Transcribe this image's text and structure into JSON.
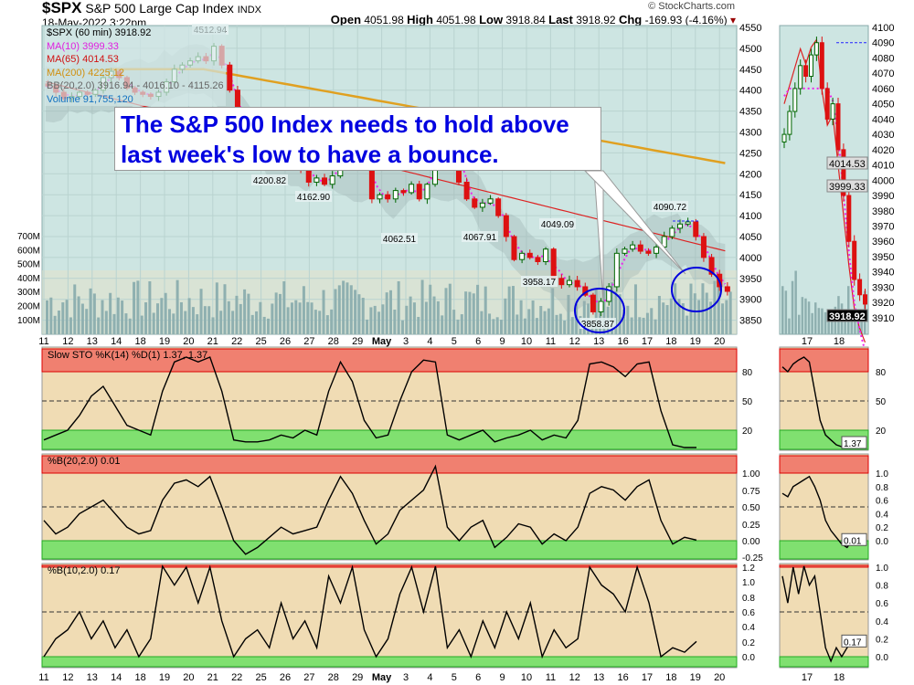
{
  "header": {
    "symbol": "$SPX",
    "name": "S&P 500 Large Cap Index",
    "exchange": "INDX",
    "datetime": "18-May-2022 3:22pm",
    "open_label": "Open",
    "open": "4051.98",
    "high_label": "High",
    "high": "4051.98",
    "low_label": "Low",
    "low": "3918.84",
    "last_label": "Last",
    "last": "3918.92",
    "chg_label": "Chg",
    "chg": "-169.93 (-4.16%)",
    "brand": "© StockCharts.com"
  },
  "legend": {
    "price": "$SPX (60 min) 3918.92",
    "ma10": "MA(10) 3999.33",
    "ma65": "MA(65) 4014.53",
    "ma200": "MA(200) 4225.12",
    "bb": "BB(20,2.0) 3916.94 - 4016.10 - 4115.26",
    "volume": "Volume 91,755,120"
  },
  "annotation": {
    "line1": "The S&P 500 Index needs to hold above",
    "line2": "last week's low to have a bounce."
  },
  "colors": {
    "price_bg": "#cde5e2",
    "osc_bg": "#f0dcb4",
    "overbought": "#f08070",
    "oversold": "#80e070",
    "up": "#006600",
    "down": "#dd1111",
    "ma10": "#ee22ee",
    "ma65": "#dd2222",
    "ma200": "#e0a020",
    "callout_text": "#0000e0",
    "circle": "#0000dd"
  },
  "chart_data": [
    {
      "type": "candlestick",
      "ylim": [
        3830,
        4550
      ],
      "yticks": [
        4550,
        4500,
        4450,
        4400,
        4350,
        4300,
        4250,
        4200,
        4150,
        4100,
        4050,
        4000,
        3950,
        3900,
        3850
      ],
      "xticks": [
        "11",
        "12",
        "13",
        "14",
        "18",
        "19",
        "20",
        "21",
        "22",
        "25",
        "26",
        "27",
        "28",
        "29",
        "May",
        "3",
        "4",
        "5",
        "6",
        "9",
        "10",
        "11",
        "12",
        "13",
        "16",
        "17",
        "18",
        "19",
        "20"
      ],
      "close": [
        4410,
        4395,
        4380,
        4385,
        4395,
        4390,
        4400,
        4430,
        4445,
        4430,
        4405,
        4395,
        4390,
        4385,
        4395,
        4420,
        4450,
        4460,
        4470,
        4480,
        4470,
        4505,
        4460,
        4400,
        4330,
        4290,
        4270,
        4240,
        4215,
        4230,
        4280,
        4270,
        4210,
        4180,
        4190,
        4175,
        4195,
        4250,
        4285,
        4270,
        4215,
        4140,
        4150,
        4140,
        4160,
        4155,
        4175,
        4140,
        4175,
        4270,
        4300,
        4290,
        4180,
        4140,
        4120,
        4130,
        4140,
        4100,
        4050,
        3995,
        4010,
        4000,
        3990,
        4020,
        3950,
        3935,
        3945,
        3930,
        3910,
        3870,
        3895,
        3930,
        4010,
        4020,
        4030,
        4015,
        4010,
        4025,
        4050,
        4070,
        4080,
        4085,
        4050,
        4000,
        3960,
        3930,
        3919
      ],
      "ma200_end": 4225.12,
      "ma65_end": 4014.53,
      "ma10_end": 3999.33,
      "volume_ylim_label": [
        "700M",
        "600M",
        "500M",
        "400M",
        "300M",
        "200M",
        "100M"
      ],
      "price_labels": [
        {
          "text": "4512.94",
          "price": 4512.94,
          "day": "21"
        },
        {
          "text": "4200.82",
          "day": "25"
        },
        {
          "text": "4162.90",
          "day": "27"
        },
        {
          "text": "4062.51",
          "day": "3"
        },
        {
          "text": "4067.91",
          "day": "9"
        },
        {
          "text": "4049.09",
          "day": "11"
        },
        {
          "text": "3958.17",
          "day": "11"
        },
        {
          "text": "3858.87",
          "day": "12"
        },
        {
          "text": "4090.72",
          "day": "17"
        }
      ]
    },
    {
      "type": "candlestick",
      "ylim": [
        3907,
        4100
      ],
      "yticks": [
        4100,
        4090,
        4080,
        4070,
        4060,
        4050,
        4040,
        4030,
        4020,
        4010,
        4000,
        3990,
        3980,
        3970,
        3960,
        3950,
        3940,
        3930,
        3920,
        3910
      ],
      "xticks": [
        "17",
        "18"
      ],
      "close": [
        4030,
        4045,
        4060,
        4075,
        4068,
        4082,
        4090,
        4060,
        4040,
        4050,
        4020,
        3990,
        3960,
        3935,
        3925,
        3918.92
      ],
      "tags": [
        "4014.53",
        "3999.33",
        "3918.92"
      ]
    },
    {
      "type": "line",
      "title": "Slow STO %K(14) %D(1) 1.37, 1.37",
      "yticks": [
        "80",
        "50",
        "20"
      ],
      "ylim": [
        0,
        100
      ],
      "bands": [
        20,
        80
      ],
      "values": [
        10,
        15,
        20,
        35,
        55,
        65,
        45,
        25,
        20,
        15,
        60,
        90,
        95,
        90,
        95,
        60,
        10,
        8,
        8,
        10,
        15,
        12,
        20,
        15,
        60,
        90,
        70,
        30,
        12,
        15,
        50,
        80,
        92,
        90,
        15,
        10,
        15,
        20,
        8,
        12,
        15,
        20,
        10,
        15,
        12,
        30,
        88,
        90,
        85,
        75,
        88,
        90,
        40,
        5,
        2,
        1.37
      ],
      "mini": [
        85,
        80,
        88,
        92,
        95,
        90,
        60,
        30,
        15,
        10,
        5,
        3,
        2,
        1.37
      ],
      "mini_ticks": [
        "80",
        "50",
        "20"
      ]
    },
    {
      "type": "line",
      "title": "%B(20,2.0) 0.01",
      "yticks": [
        "1.00",
        "0.75",
        "0.50",
        "0.25",
        "0.00",
        "-0.25"
      ],
      "ylim": [
        -0.3,
        1.2
      ],
      "bands": [
        0,
        1
      ],
      "values": [
        0.3,
        0.1,
        0.2,
        0.4,
        0.5,
        0.6,
        0.4,
        0.2,
        0.1,
        0.15,
        0.6,
        0.85,
        0.9,
        0.8,
        0.95,
        0.5,
        0.0,
        -0.2,
        -0.1,
        0.05,
        0.2,
        0.1,
        0.15,
        0.2,
        0.6,
        0.95,
        0.7,
        0.3,
        -0.05,
        0.1,
        0.45,
        0.6,
        0.75,
        1.1,
        0.2,
        0.0,
        0.2,
        0.3,
        -0.1,
        0.05,
        0.25,
        0.2,
        -0.05,
        0.1,
        0.0,
        0.2,
        0.7,
        0.8,
        0.75,
        0.6,
        0.8,
        0.9,
        0.3,
        -0.05,
        0.05,
        0.01
      ],
      "mini": [
        0.7,
        0.65,
        0.8,
        0.85,
        0.9,
        0.95,
        0.8,
        0.6,
        0.3,
        0.15,
        0.05,
        -0.05,
        -0.1,
        0.01
      ],
      "mini_ticks": [
        "1.0",
        "0.8",
        "0.6",
        "0.4",
        "0.2",
        "0.0"
      ]
    },
    {
      "type": "line",
      "title": "%B(10,2.0) 0.17",
      "yticks": [
        "1.2",
        "1.0",
        "0.8",
        "0.6",
        "0.4",
        "0.2",
        "0.0"
      ],
      "ylim": [
        -0.15,
        1.25
      ],
      "bands": [
        0,
        1
      ],
      "values": [
        0.0,
        0.2,
        0.3,
        0.5,
        0.2,
        0.4,
        0.1,
        0.3,
        0.0,
        0.2,
        1.05,
        0.8,
        1.0,
        0.6,
        1.0,
        0.4,
        0.0,
        0.2,
        0.3,
        0.1,
        0.6,
        0.2,
        0.4,
        0.1,
        0.9,
        0.6,
        1.0,
        0.3,
        0.0,
        0.2,
        0.7,
        1.0,
        0.5,
        1.1,
        0.1,
        0.3,
        0.0,
        0.4,
        0.1,
        0.5,
        0.2,
        0.6,
        0.0,
        0.3,
        0.1,
        0.2,
        1.0,
        0.8,
        0.7,
        0.5,
        1.0,
        0.6,
        0.0,
        0.1,
        0.05,
        0.17
      ],
      "mini": [
        0.9,
        0.6,
        1.0,
        0.7,
        1.05,
        0.8,
        0.9,
        0.5,
        0.1,
        -0.05,
        0.1,
        0.0,
        0.1,
        0.17
      ],
      "mini_ticks": [
        "1.0",
        "0.8",
        "0.6",
        "0.4",
        "0.2",
        "0.0"
      ]
    }
  ]
}
